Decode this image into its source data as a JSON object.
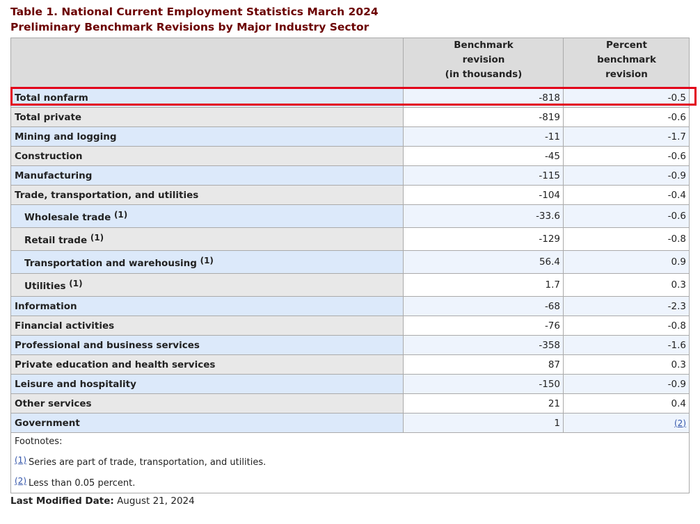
{
  "caption": {
    "line1": "Table 1. National Current Employment Statistics March 2024",
    "line2": "Preliminary Benchmark Revisions by Major Industry Sector"
  },
  "table": {
    "headers": {
      "stub": "",
      "col1": [
        "Benchmark",
        "revision",
        "(in thousands)"
      ],
      "col2": [
        "Percent",
        "benchmark",
        "revision"
      ]
    },
    "rows": [
      {
        "label": "Total nonfarm",
        "ref": "",
        "revision": "-818",
        "percent": "-0.5"
      },
      {
        "label": "Total private",
        "ref": "",
        "revision": "-819",
        "percent": "-0.6"
      },
      {
        "label": "Mining and logging",
        "ref": "",
        "revision": "-11",
        "percent": "-1.7"
      },
      {
        "label": "Construction",
        "ref": "",
        "revision": "-45",
        "percent": "-0.6"
      },
      {
        "label": "Manufacturing",
        "ref": "",
        "revision": "-115",
        "percent": "-0.9"
      },
      {
        "label": "Trade, transportation, and utilities",
        "ref": "",
        "revision": "-104",
        "percent": "-0.4"
      },
      {
        "label": "Wholesale trade",
        "ref": "(1)",
        "revision": "-33.6",
        "percent": "-0.6"
      },
      {
        "label": "Retail trade",
        "ref": "(1)",
        "revision": "-129",
        "percent": "-0.8"
      },
      {
        "label": "Transportation and warehousing",
        "ref": "(1)",
        "revision": "56.4",
        "percent": "0.9"
      },
      {
        "label": "Utilities",
        "ref": "(1)",
        "revision": "1.7",
        "percent": "0.3"
      },
      {
        "label": "Information",
        "ref": "",
        "revision": "-68",
        "percent": "-2.3"
      },
      {
        "label": "Financial activities",
        "ref": "",
        "revision": "-76",
        "percent": "-0.8"
      },
      {
        "label": "Professional and business services",
        "ref": "",
        "revision": "-358",
        "percent": "-1.6"
      },
      {
        "label": "Private education and health services",
        "ref": "",
        "revision": "87",
        "percent": "0.3"
      },
      {
        "label": "Leisure and hospitality",
        "ref": "",
        "revision": "-150",
        "percent": "-0.9"
      },
      {
        "label": "Other services",
        "ref": "",
        "revision": "21",
        "percent": "0.4"
      },
      {
        "label": "Government",
        "ref": "",
        "revision": "1",
        "percent": "(2)",
        "percent_is_link": true
      }
    ],
    "footnotes": {
      "title": "Footnotes:",
      "items": [
        {
          "ref": "(1)",
          "text": "Series are part of trade, transportation, and utilities."
        },
        {
          "ref": "(2)",
          "text": "Less than 0.05 percent."
        }
      ]
    }
  },
  "last_modified": {
    "label": "Last Modified Date:",
    "value": "August 21, 2024"
  },
  "colors": {
    "caption": "#6b0000",
    "highlight": "#e2001a",
    "link": "#3355aa",
    "row_blue": "#dce9fa",
    "row_gray": "#e8e8e8"
  }
}
